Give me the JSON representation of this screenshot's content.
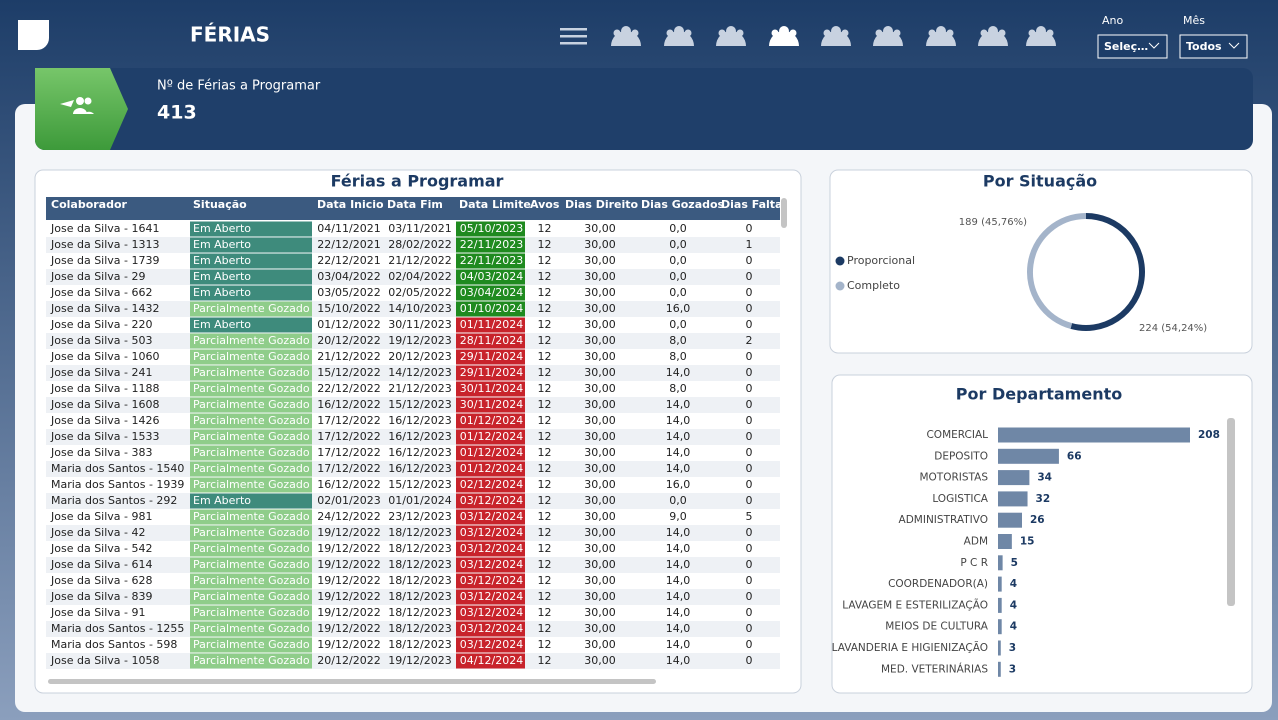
{
  "header": {
    "title": "FÉRIAS",
    "filters": [
      {
        "label": "Ano",
        "value": "Seleç…"
      },
      {
        "label": "Mês",
        "value": "Todos"
      }
    ]
  },
  "kpi": {
    "label": "Nº de Férias a Programar",
    "value": 413
  },
  "table": {
    "title": "Férias a Programar",
    "columns": [
      "Colaborador",
      "Situação",
      "Data Inicio",
      "Data Fim",
      "Data Limite",
      "Avos",
      "Dias Direito",
      "Dias Gozados",
      "Dias Falta"
    ],
    "rows": [
      [
        "Jose da Silva - 1641",
        "Em Aberto",
        "04/11/2021",
        "03/11/2021",
        "05/10/2023",
        "12",
        "30,00",
        "0,0",
        "0"
      ],
      [
        "Jose da Silva - 1313",
        "Em Aberto",
        "22/12/2021",
        "28/02/2022",
        "22/11/2023",
        "12",
        "30,00",
        "0,0",
        "1"
      ],
      [
        "Jose da Silva - 1739",
        "Em Aberto",
        "22/12/2021",
        "21/12/2022",
        "22/11/2023",
        "12",
        "30,00",
        "0,0",
        "0"
      ],
      [
        "Jose da Silva - 29",
        "Em Aberto",
        "03/04/2022",
        "02/04/2022",
        "04/03/2024",
        "12",
        "30,00",
        "0,0",
        "0"
      ],
      [
        "Jose da Silva - 662",
        "Em Aberto",
        "03/05/2022",
        "02/05/2022",
        "03/04/2024",
        "12",
        "30,00",
        "0,0",
        "0"
      ],
      [
        "Jose da Silva - 1432",
        "Parcialmente Gozado",
        "15/10/2022",
        "14/10/2023",
        "01/10/2024",
        "12",
        "30,00",
        "16,0",
        "0"
      ],
      [
        "Jose da Silva - 220",
        "Em Aberto",
        "01/12/2022",
        "30/11/2023",
        "01/11/2024",
        "12",
        "30,00",
        "0,0",
        "0"
      ],
      [
        "Jose da Silva - 503",
        "Parcialmente Gozado",
        "20/12/2022",
        "19/12/2023",
        "28/11/2024",
        "12",
        "30,00",
        "8,0",
        "2"
      ],
      [
        "Jose da Silva - 1060",
        "Parcialmente Gozado",
        "21/12/2022",
        "20/12/2023",
        "29/11/2024",
        "12",
        "30,00",
        "8,0",
        "0"
      ],
      [
        "Jose da Silva - 241",
        "Parcialmente Gozado",
        "15/12/2022",
        "14/12/2023",
        "29/11/2024",
        "12",
        "30,00",
        "14,0",
        "0"
      ],
      [
        "Jose da Silva - 1188",
        "Parcialmente Gozado",
        "22/12/2022",
        "21/12/2023",
        "30/11/2024",
        "12",
        "30,00",
        "8,0",
        "0"
      ],
      [
        "Jose da Silva - 1608",
        "Parcialmente Gozado",
        "16/12/2022",
        "15/12/2023",
        "30/11/2024",
        "12",
        "30,00",
        "14,0",
        "0"
      ],
      [
        "Jose da Silva - 1426",
        "Parcialmente Gozado",
        "17/12/2022",
        "16/12/2023",
        "01/12/2024",
        "12",
        "30,00",
        "14,0",
        "0"
      ],
      [
        "Jose da Silva - 1533",
        "Parcialmente Gozado",
        "17/12/2022",
        "16/12/2023",
        "01/12/2024",
        "12",
        "30,00",
        "14,0",
        "0"
      ],
      [
        "Jose da Silva - 383",
        "Parcialmente Gozado",
        "17/12/2022",
        "16/12/2023",
        "01/12/2024",
        "12",
        "30,00",
        "14,0",
        "0"
      ],
      [
        "Maria dos Santos - 1540",
        "Parcialmente Gozado",
        "17/12/2022",
        "16/12/2023",
        "01/12/2024",
        "12",
        "30,00",
        "14,0",
        "0"
      ],
      [
        "Maria dos Santos - 1939",
        "Parcialmente Gozado",
        "16/12/2022",
        "15/12/2023",
        "02/12/2024",
        "12",
        "30,00",
        "16,0",
        "0"
      ],
      [
        "Maria dos Santos - 292",
        "Em Aberto",
        "02/01/2023",
        "01/01/2024",
        "03/12/2024",
        "12",
        "30,00",
        "0,0",
        "0"
      ],
      [
        "Jose da Silva - 981",
        "Parcialmente Gozado",
        "24/12/2022",
        "23/12/2023",
        "03/12/2024",
        "12",
        "30,00",
        "9,0",
        "5"
      ],
      [
        "Jose da Silva - 42",
        "Parcialmente Gozado",
        "19/12/2022",
        "18/12/2023",
        "03/12/2024",
        "12",
        "30,00",
        "14,0",
        "0"
      ],
      [
        "Jose da Silva - 542",
        "Parcialmente Gozado",
        "19/12/2022",
        "18/12/2023",
        "03/12/2024",
        "12",
        "30,00",
        "14,0",
        "0"
      ],
      [
        "Jose da Silva - 614",
        "Parcialmente Gozado",
        "19/12/2022",
        "18/12/2023",
        "03/12/2024",
        "12",
        "30,00",
        "14,0",
        "0"
      ],
      [
        "Jose da Silva - 628",
        "Parcialmente Gozado",
        "19/12/2022",
        "18/12/2023",
        "03/12/2024",
        "12",
        "30,00",
        "14,0",
        "0"
      ],
      [
        "Jose da Silva - 839",
        "Parcialmente Gozado",
        "19/12/2022",
        "18/12/2023",
        "03/12/2024",
        "12",
        "30,00",
        "14,0",
        "0"
      ],
      [
        "Jose da Silva - 91",
        "Parcialmente Gozado",
        "19/12/2022",
        "18/12/2023",
        "03/12/2024",
        "12",
        "30,00",
        "14,0",
        "0"
      ],
      [
        "Maria dos Santos - 1255",
        "Parcialmente Gozado",
        "19/12/2022",
        "18/12/2023",
        "03/12/2024",
        "12",
        "30,00",
        "14,0",
        "0"
      ],
      [
        "Maria dos Santos - 598",
        "Parcialmente Gozado",
        "19/12/2022",
        "18/12/2023",
        "03/12/2024",
        "12",
        "30,00",
        "14,0",
        "0"
      ],
      [
        "Jose da Silva - 1058",
        "Parcialmente Gozado",
        "20/12/2022",
        "19/12/2023",
        "04/12/2024",
        "12",
        "30,00",
        "14,0",
        "0"
      ]
    ],
    "limit_colors": [
      "#1f8a1f",
      "#1f8a1f",
      "#1f8a1f",
      "#1f8a1f",
      "#1f8a1f",
      "#1f8a1f",
      "#c8232b",
      "#c8232b",
      "#c8232b",
      "#c8232b",
      "#c8232b",
      "#c8232b",
      "#c8232b",
      "#c8232b",
      "#c8232b",
      "#c8232b",
      "#c8232b",
      "#c8232b",
      "#c8232b",
      "#c8232b",
      "#c8232b",
      "#c8232b",
      "#c8232b",
      "#c8232b",
      "#c8232b",
      "#c8232b",
      "#c8232b",
      "#c8232b"
    ],
    "status_colors": {
      "Em Aberto": "#3e8b7c",
      "Parcialmente Gozado": "#8fcd8a"
    }
  },
  "situacao": {
    "type": "pie",
    "title": "Por Situação",
    "categories": [
      "Proporcional",
      "Completo"
    ],
    "values": [
      224,
      189
    ],
    "value_labels": [
      "224 (54,24%)",
      "189 (45,76%)"
    ],
    "colors": [
      "#1c3a63",
      "#a4b4ca"
    ]
  },
  "departamento": {
    "type": "bar",
    "title": "Por Departamento",
    "color": "#6f87a6",
    "categories": [
      "COMERCIAL",
      "DEPOSITO",
      "MOTORISTAS",
      "LOGISTICA",
      "ADMINISTRATIVO",
      "ADM",
      "P C R",
      "COORDENADOR(A)",
      "LAVAGEM E ESTERILIZAÇÃO",
      "MEIOS DE CULTURA",
      "LAVANDERIA E HIGIENIZAÇÃO",
      "MED. VETERINÁRIAS"
    ],
    "values": [
      208,
      66,
      34,
      32,
      26,
      15,
      5,
      4,
      4,
      4,
      3,
      3
    ]
  }
}
